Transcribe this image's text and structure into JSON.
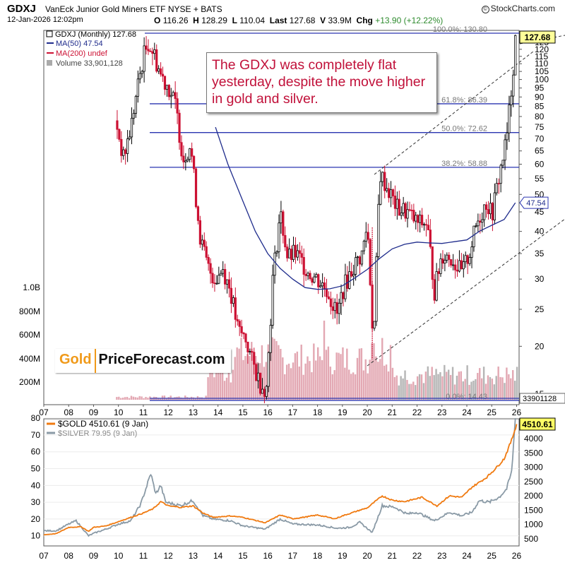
{
  "header": {
    "symbol": "GDXJ",
    "name": "VanEck Junior Gold Miners ETF  NYSE + BATS",
    "brand": "StockCharts.com",
    "brand_mark": "©",
    "datetime": "12-Jan-2026 12:02pm",
    "ohlc": {
      "open_label": "O",
      "open": "116.26",
      "high_label": "H",
      "high": "128.29",
      "low_label": "L",
      "low": "110.04",
      "last_label": "Last",
      "last": "127.68",
      "volume_label": "V",
      "volume": "33.9M",
      "chg_label": "Chg",
      "chg": "+13.90 (+12.22%)"
    }
  },
  "legend": {
    "price": "GDXJ (Monthly) 127.68",
    "ma50": "MA(50) 47.54",
    "ma200": "MA(200) undef",
    "volume": "Volume 33,901,128"
  },
  "callout": "The GDXJ was completely flat yesterday, despite the move higher in gold and silver.",
  "logo": {
    "gold": "Gold",
    "rest": "PriceForecast.com"
  },
  "colors": {
    "up": "#000000",
    "down": "#cc1133",
    "ma50": "#1f2c8c",
    "fib": "#2a35b0",
    "gold": "#f07a10",
    "silver": "#8a9aa6",
    "volume": "#e3a8b3",
    "volume_gray": "#b5b5b5",
    "callout_text": "#c1113a",
    "label_price_bg": "#ffff99",
    "label_ma_border": "#2a35b0",
    "label_gold_bg": "#ffff66"
  },
  "chart_data": [
    {
      "type": "candlestick",
      "title": "GDXJ VanEck Junior Gold Miners ETF",
      "x_tick_labels": [
        "07",
        "08",
        "09",
        "10",
        "11",
        "12",
        "13",
        "14",
        "15",
        "16",
        "17",
        "18",
        "19",
        "20",
        "21",
        "22",
        "23",
        "24",
        "25",
        "26"
      ],
      "y_scale": "log",
      "y_tick_labels": [
        15,
        20,
        25,
        30,
        35,
        40,
        45,
        50,
        55,
        60,
        65,
        70,
        75,
        80,
        85,
        90,
        95,
        100,
        105,
        110,
        115,
        120,
        125
      ],
      "volume_tick_labels": [
        "200M",
        "400M",
        "600M",
        "800M",
        "1.0B"
      ],
      "last_price_label": "127.68",
      "ma50_label": "47.54",
      "volume_last_label": "33901128",
      "fib_levels": [
        {
          "label": "100.0%: 130.80",
          "value": 130.8
        },
        {
          "label": "61.8%: 86.39",
          "value": 86.39
        },
        {
          "label": "50.0%: 72.62",
          "value": 72.62
        },
        {
          "label": "38.2%: 58.88",
          "value": 58.88
        },
        {
          "label": "0.0%: 14.43",
          "value": 14.43
        }
      ],
      "price_path": [
        [
          2009.9,
          78
        ],
        [
          2010.2,
          62
        ],
        [
          2010.5,
          75
        ],
        [
          2010.8,
          98
        ],
        [
          2011.0,
          115
        ],
        [
          2011.2,
          125
        ],
        [
          2011.4,
          118
        ],
        [
          2011.7,
          103
        ],
        [
          2012.0,
          96
        ],
        [
          2012.3,
          85
        ],
        [
          2012.6,
          62
        ],
        [
          2012.9,
          68
        ],
        [
          2013.1,
          50
        ],
        [
          2013.3,
          38
        ],
        [
          2013.6,
          32
        ],
        [
          2013.9,
          30
        ],
        [
          2014.2,
          32
        ],
        [
          2014.5,
          28
        ],
        [
          2014.8,
          22
        ],
        [
          2015.1,
          21
        ],
        [
          2015.4,
          18
        ],
        [
          2015.7,
          16
        ],
        [
          2015.95,
          15.5
        ],
        [
          2016.2,
          30
        ],
        [
          2016.5,
          45
        ],
        [
          2016.8,
          34
        ],
        [
          2017.1,
          35
        ],
        [
          2017.4,
          33
        ],
        [
          2017.7,
          31
        ],
        [
          2018.0,
          30
        ],
        [
          2018.4,
          28
        ],
        [
          2018.8,
          24
        ],
        [
          2019.0,
          28
        ],
        [
          2019.4,
          32
        ],
        [
          2019.8,
          35
        ],
        [
          2020.0,
          42
        ],
        [
          2020.25,
          20
        ],
        [
          2020.5,
          57
        ],
        [
          2020.8,
          52
        ],
        [
          2021.2,
          46
        ],
        [
          2021.6,
          45
        ],
        [
          2022.0,
          42
        ],
        [
          2022.4,
          42
        ],
        [
          2022.7,
          28
        ],
        [
          2023.0,
          35
        ],
        [
          2023.4,
          34
        ],
        [
          2023.8,
          31
        ],
        [
          2024.1,
          35
        ],
        [
          2024.4,
          42
        ],
        [
          2024.8,
          48
        ],
        [
          2025.0,
          44
        ],
        [
          2025.3,
          56
        ],
        [
          2025.6,
          70
        ],
        [
          2025.8,
          96
        ],
        [
          2025.95,
          128
        ]
      ],
      "ma50_path": [
        [
          2013.9,
          75
        ],
        [
          2014.4,
          60
        ],
        [
          2015.0,
          48
        ],
        [
          2015.5,
          40
        ],
        [
          2016.0,
          35
        ],
        [
          2016.5,
          32
        ],
        [
          2017.0,
          30
        ],
        [
          2017.5,
          28.5
        ],
        [
          2018.0,
          28.2
        ],
        [
          2018.5,
          28.3
        ],
        [
          2019.0,
          28.8
        ],
        [
          2019.5,
          30.2
        ],
        [
          2020.0,
          31.8
        ],
        [
          2020.5,
          34
        ],
        [
          2021.0,
          36
        ],
        [
          2021.5,
          37
        ],
        [
          2022.0,
          37.5
        ],
        [
          2022.5,
          37.3
        ],
        [
          2023.0,
          37.2
        ],
        [
          2023.5,
          37.6
        ],
        [
          2024.0,
          38
        ],
        [
          2024.5,
          40
        ],
        [
          2025.0,
          41.5
        ],
        [
          2025.5,
          43
        ],
        [
          2025.95,
          47.54
        ]
      ]
    },
    {
      "type": "line",
      "title": "$GOLD vs $SILVER",
      "x_tick_labels": [
        "07",
        "08",
        "09",
        "10",
        "11",
        "12",
        "13",
        "14",
        "15",
        "16",
        "17",
        "18",
        "19",
        "20",
        "21",
        "22",
        "23",
        "24",
        "25",
        "26"
      ],
      "left_y_tick_labels": [
        10,
        20,
        30,
        40,
        50,
        60,
        70,
        80
      ],
      "right_y_tick_labels": [
        500,
        1000,
        1500,
        2000,
        2500,
        3000,
        3500,
        4000
      ],
      "last_label": "4510.61",
      "series": [
        {
          "name": "$GOLD 4510.61 (9 Jan)",
          "axis": "right",
          "points": [
            [
              2007.0,
              640
            ],
            [
              2007.5,
              680
            ],
            [
              2008.0,
              900
            ],
            [
              2008.5,
              920
            ],
            [
              2008.8,
              760
            ],
            [
              2009.0,
              900
            ],
            [
              2009.5,
              950
            ],
            [
              2010.0,
              1100
            ],
            [
              2010.5,
              1250
            ],
            [
              2011.0,
              1400
            ],
            [
              2011.4,
              1550
            ],
            [
              2011.7,
              1800
            ],
            [
              2012.0,
              1650
            ],
            [
              2012.5,
              1600
            ],
            [
              2013.0,
              1650
            ],
            [
              2013.4,
              1400
            ],
            [
              2013.8,
              1250
            ],
            [
              2014.5,
              1300
            ],
            [
              2015.0,
              1250
            ],
            [
              2015.9,
              1060
            ],
            [
              2016.5,
              1330
            ],
            [
              2017.0,
              1200
            ],
            [
              2017.5,
              1260
            ],
            [
              2018.0,
              1330
            ],
            [
              2018.7,
              1200
            ],
            [
              2019.0,
              1300
            ],
            [
              2019.7,
              1500
            ],
            [
              2020.0,
              1580
            ],
            [
              2020.6,
              2000
            ],
            [
              2021.0,
              1850
            ],
            [
              2021.5,
              1800
            ],
            [
              2022.2,
              1950
            ],
            [
              2022.8,
              1650
            ],
            [
              2023.3,
              2000
            ],
            [
              2023.8,
              1950
            ],
            [
              2024.2,
              2300
            ],
            [
              2024.8,
              2650
            ],
            [
              2025.2,
              3000
            ],
            [
              2025.5,
              3300
            ],
            [
              2025.8,
              3950
            ],
            [
              2026.0,
              4510.61
            ]
          ]
        },
        {
          "name": "$SILVER 79.95 (9 Jan)",
          "axis": "left",
          "points": [
            [
              2007.0,
              13
            ],
            [
              2007.5,
              13
            ],
            [
              2008.0,
              17
            ],
            [
              2008.3,
              19
            ],
            [
              2008.8,
              10
            ],
            [
              2009.0,
              11.5
            ],
            [
              2009.5,
              14
            ],
            [
              2010.0,
              17
            ],
            [
              2010.5,
              19
            ],
            [
              2010.9,
              29
            ],
            [
              2011.3,
              47
            ],
            [
              2011.5,
              35
            ],
            [
              2011.7,
              40
            ],
            [
              2011.9,
              30
            ],
            [
              2012.5,
              28
            ],
            [
              2013.0,
              31
            ],
            [
              2013.4,
              22
            ],
            [
              2013.8,
              20
            ],
            [
              2014.5,
              19
            ],
            [
              2015.0,
              16
            ],
            [
              2015.9,
              14
            ],
            [
              2016.5,
              20
            ],
            [
              2017.0,
              17
            ],
            [
              2018.0,
              16.5
            ],
            [
              2018.8,
              14.5
            ],
            [
              2019.3,
              15
            ],
            [
              2019.7,
              18
            ],
            [
              2020.2,
              12
            ],
            [
              2020.6,
              28
            ],
            [
              2021.1,
              27
            ],
            [
              2021.6,
              23
            ],
            [
              2022.0,
              24
            ],
            [
              2022.7,
              19
            ],
            [
              2023.3,
              24
            ],
            [
              2023.8,
              22
            ],
            [
              2024.2,
              24
            ],
            [
              2024.5,
              31
            ],
            [
              2024.9,
              30
            ],
            [
              2025.3,
              33
            ],
            [
              2025.6,
              38
            ],
            [
              2025.8,
              48
            ],
            [
              2025.95,
              80
            ]
          ]
        }
      ]
    }
  ]
}
